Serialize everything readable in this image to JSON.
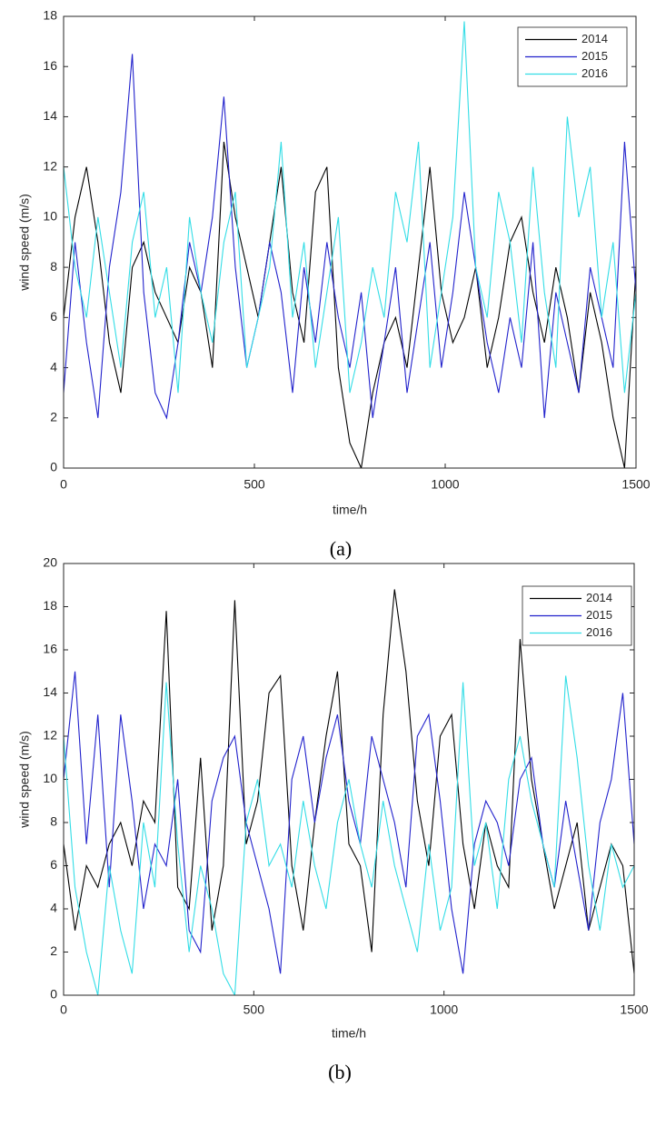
{
  "chart_data": [
    {
      "type": "line",
      "caption": "(a)",
      "xlabel": "time/h",
      "ylabel": "wind speed (m/s)",
      "xlim": [
        0,
        1500
      ],
      "xticks": [
        0,
        500,
        1000,
        1500
      ],
      "ylim": [
        0,
        18
      ],
      "yticks": [
        0,
        2,
        4,
        6,
        8,
        10,
        12,
        14,
        16,
        18
      ],
      "legend": "upper right",
      "x": [
        0,
        30,
        60,
        90,
        120,
        150,
        180,
        210,
        240,
        270,
        300,
        330,
        360,
        390,
        420,
        450,
        480,
        510,
        540,
        570,
        600,
        630,
        660,
        690,
        720,
        750,
        780,
        810,
        840,
        870,
        900,
        930,
        960,
        990,
        1020,
        1050,
        1080,
        1110,
        1140,
        1170,
        1200,
        1230,
        1260,
        1290,
        1320,
        1350,
        1380,
        1410,
        1440,
        1470,
        1500
      ],
      "series": [
        {
          "name": "2014",
          "color": "#000000",
          "values": [
            6,
            10,
            12,
            9,
            5,
            3,
            8,
            9,
            7,
            6,
            5,
            8,
            7,
            4,
            13,
            10,
            8,
            6,
            9,
            12,
            7,
            5,
            11,
            12,
            4,
            1,
            0,
            3,
            5,
            6,
            4,
            8,
            12,
            7,
            5,
            6,
            8,
            4,
            6,
            9,
            10,
            7,
            5,
            8,
            6,
            3,
            7,
            5,
            2,
            0,
            8
          ]
        },
        {
          "name": "2015",
          "color": "#2222cc",
          "values": [
            3,
            9,
            5,
            2,
            8,
            11,
            16.5,
            7,
            3,
            2,
            5,
            9,
            7,
            10,
            14.8,
            8,
            4,
            6,
            9,
            7,
            3,
            8,
            5,
            9,
            6,
            4,
            7,
            2,
            5,
            8,
            3,
            6,
            9,
            4,
            7,
            11,
            8,
            5,
            3,
            6,
            4,
            9,
            2,
            7,
            5,
            3,
            8,
            6,
            4,
            13,
            7
          ]
        },
        {
          "name": "2016",
          "color": "#33dde6",
          "values": [
            12,
            8,
            6,
            10,
            7,
            4,
            9,
            11,
            6,
            8,
            3,
            10,
            7,
            5,
            9,
            11,
            4,
            6,
            8,
            13,
            6,
            9,
            4,
            7,
            10,
            3,
            5,
            8,
            6,
            11,
            9,
            13,
            4,
            7,
            10,
            17.8,
            8,
            6,
            11,
            9,
            5,
            12,
            7,
            4,
            14,
            10,
            12,
            6,
            9,
            3,
            7
          ]
        }
      ]
    },
    {
      "type": "line",
      "caption": "(b)",
      "xlabel": "time/h",
      "ylabel": "wind speed (m/s)",
      "xlim": [
        0,
        1500
      ],
      "xticks": [
        0,
        500,
        1000,
        1500
      ],
      "ylim": [
        0,
        20
      ],
      "yticks": [
        0,
        2,
        4,
        6,
        8,
        10,
        12,
        14,
        16,
        18,
        20
      ],
      "legend": "upper right",
      "x": [
        0,
        30,
        60,
        90,
        120,
        150,
        180,
        210,
        240,
        270,
        300,
        330,
        360,
        390,
        420,
        450,
        480,
        510,
        540,
        570,
        600,
        630,
        660,
        690,
        720,
        750,
        780,
        810,
        840,
        870,
        900,
        930,
        960,
        990,
        1020,
        1050,
        1080,
        1110,
        1140,
        1170,
        1200,
        1230,
        1260,
        1290,
        1320,
        1350,
        1380,
        1410,
        1440,
        1470,
        1500
      ],
      "series": [
        {
          "name": "2014",
          "color": "#000000",
          "values": [
            7,
            3,
            6,
            5,
            7,
            8,
            6,
            9,
            8,
            17.8,
            5,
            4,
            11,
            3,
            6,
            18.3,
            7,
            9,
            14,
            14.8,
            6,
            3,
            8,
            12,
            15,
            7,
            6,
            2,
            13,
            18.8,
            15,
            9,
            6,
            12,
            13,
            7,
            4,
            8,
            6,
            5,
            16.5,
            10,
            7,
            4,
            6,
            8,
            3,
            5,
            7,
            6,
            1
          ]
        },
        {
          "name": "2015",
          "color": "#2222cc",
          "values": [
            10,
            15,
            7,
            13,
            5,
            13,
            9,
            4,
            7,
            6,
            10,
            3,
            2,
            9,
            11,
            12,
            8,
            6,
            4,
            1,
            10,
            12,
            8,
            11,
            13,
            9,
            7,
            12,
            10,
            8,
            5,
            12,
            13,
            9,
            4,
            1,
            7,
            9,
            8,
            6,
            10,
            11,
            7,
            5,
            9,
            6,
            3,
            8,
            10,
            14,
            7
          ]
        },
        {
          "name": "2016",
          "color": "#33dde6",
          "values": [
            12,
            5,
            2,
            0,
            6,
            3,
            1,
            8,
            5,
            14.5,
            7,
            2,
            6,
            4,
            1,
            0,
            8,
            10,
            6,
            7,
            5,
            9,
            6,
            4,
            8,
            10,
            7,
            5,
            9,
            6,
            4,
            2,
            7,
            3,
            5,
            14.5,
            6,
            8,
            4,
            10,
            12,
            9,
            7,
            5,
            14.8,
            11,
            6,
            3,
            7,
            5,
            6
          ]
        }
      ]
    }
  ]
}
